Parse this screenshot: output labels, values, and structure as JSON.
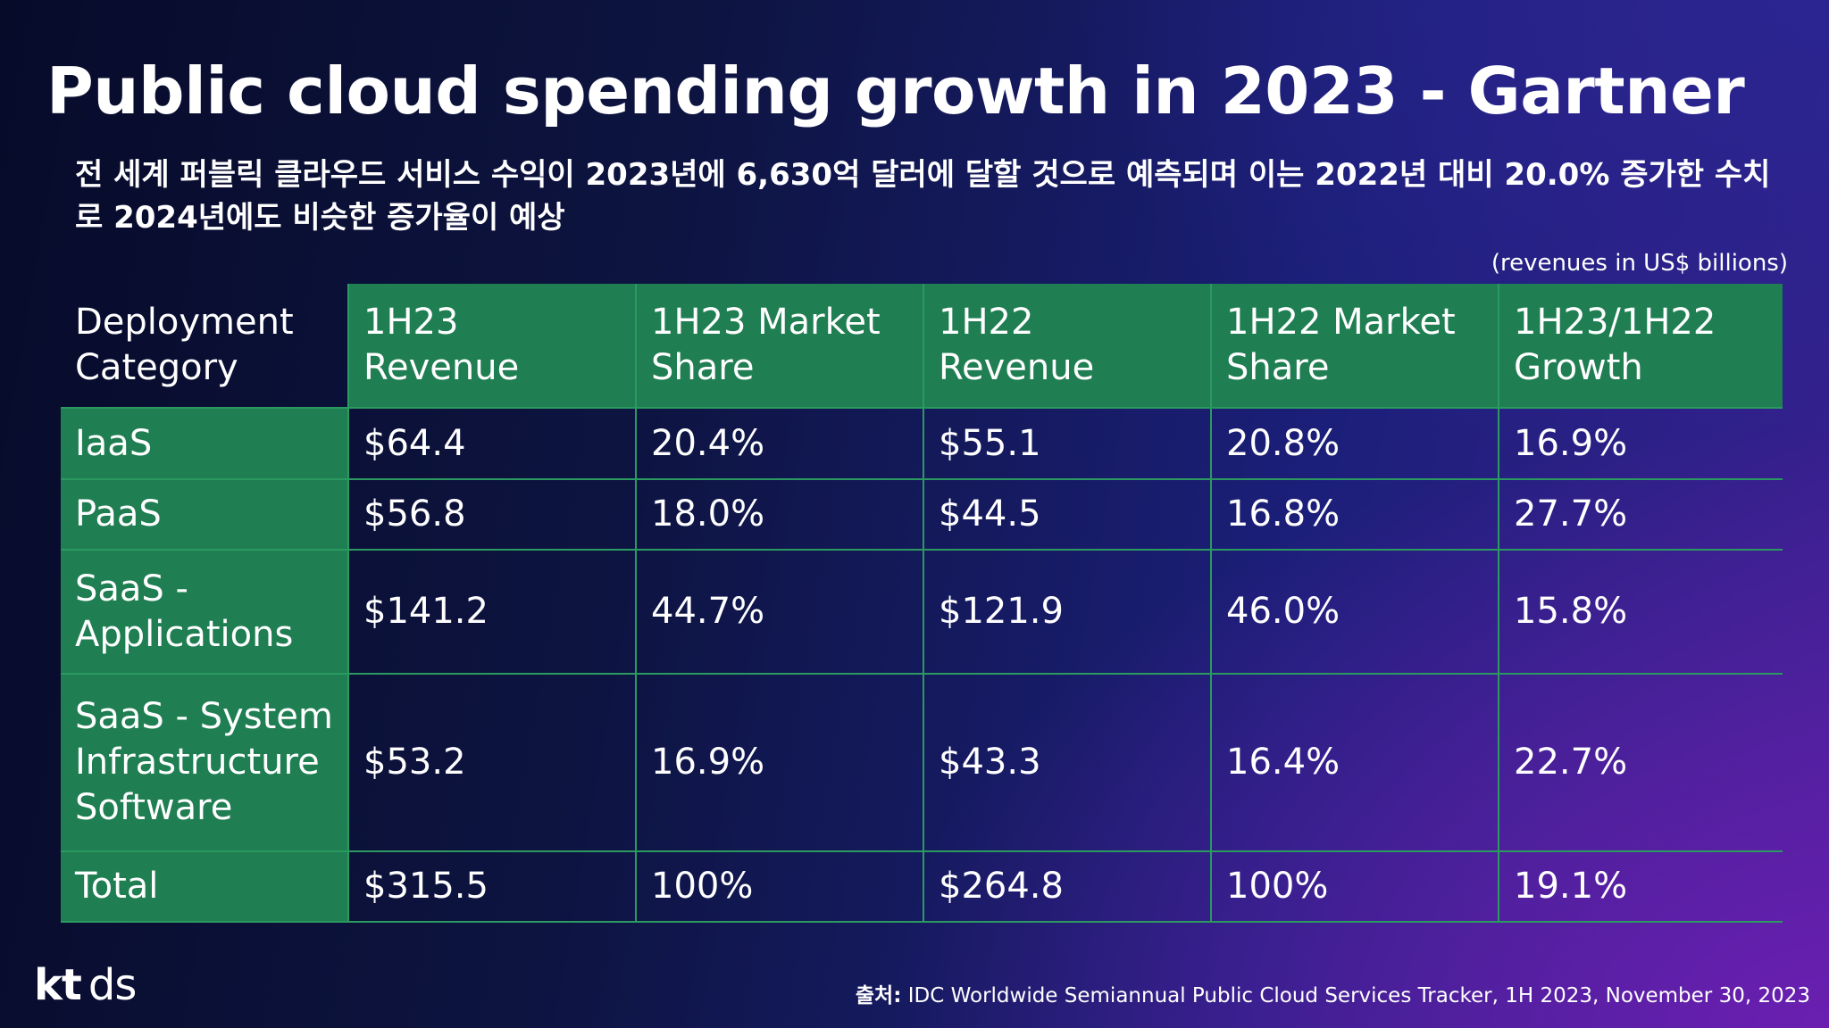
{
  "title": "Public cloud spending growth in 2023 - Gartner",
  "subtitle": "전 세계 퍼블릭 클라우드 서비스 수익이 2023년에 6,630억 달러에 달할 것으로 예측되며 이는 2022년 대비 20.0% 증가한 수치로 2024년에도 비슷한 증가율이 예상",
  "units_note": "(revenues in US$ billions)",
  "table": {
    "headers": [
      "Deployment Category",
      "1H23 Revenue",
      "1H23 Market Share",
      "1H22 Revenue",
      "1H22 Market Share",
      "1H23/1H22 Growth"
    ],
    "rows": [
      [
        "IaaS",
        "$64.4",
        "20.4%",
        "$55.1",
        "20.8%",
        "16.9%"
      ],
      [
        "PaaS",
        "$56.8",
        "18.0%",
        "$44.5",
        "16.8%",
        "27.7%"
      ],
      [
        "SaaS - Applications",
        "$141.2",
        "44.7%",
        "$121.9",
        "46.0%",
        "15.8%"
      ],
      [
        "SaaS - System Infrastructure Software",
        "$53.2",
        "16.9%",
        "$43.3",
        "16.4%",
        "22.7%"
      ],
      [
        "Total",
        "$315.5",
        "100%",
        "$264.8",
        "100%",
        "19.1%"
      ]
    ]
  },
  "logo": {
    "kt": "kt",
    "ds": "ds"
  },
  "source": {
    "label": "출처:",
    "text": " IDC Worldwide Semiannual Public Cloud Services Tracker, 1H 2023, November 30, 2023"
  },
  "colors": {
    "table_green": "#1f7e52",
    "grid_line": "#2b9a60",
    "background_dark": "#0d1440",
    "background_purple": "#6a1fb0"
  }
}
